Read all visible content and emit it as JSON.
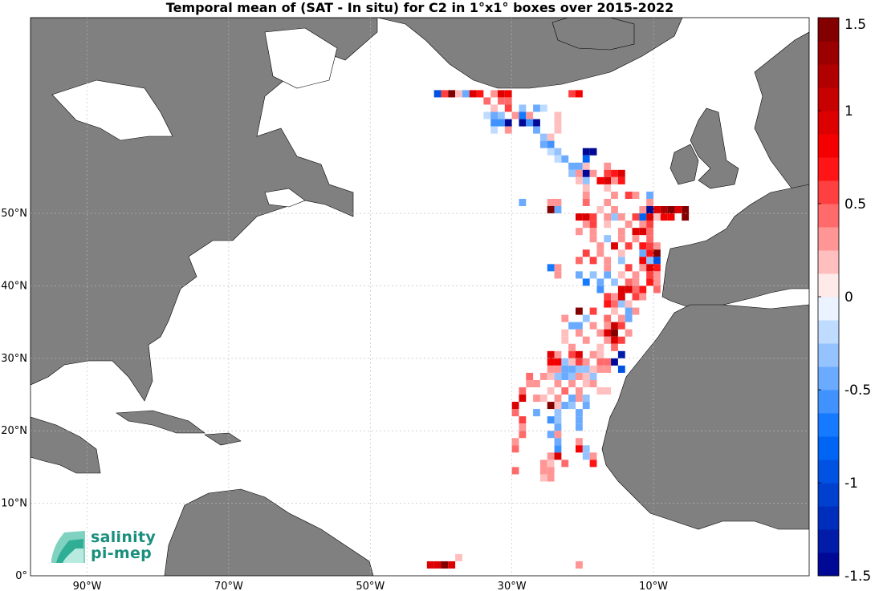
{
  "title": "Temporal mean of (SAT - In situ) for C2 in 1°x1° boxes over 2015-2022",
  "logo": {
    "line1": "salinity",
    "line2": "pi-mep"
  },
  "colors": {
    "land": "#808080",
    "ocean": "#ffffff",
    "grid": "#bbbbbb"
  },
  "chart_data": {
    "type": "heatmap",
    "title": "Temporal mean of (SAT - In situ) for C2 in 1°x1° boxes over 2015-2022",
    "xlabel": "",
    "ylabel": "",
    "xlim": [
      -98,
      12
    ],
    "ylim": [
      0,
      77
    ],
    "x_ticks": [
      {
        "value": -90,
        "label": "90°W"
      },
      {
        "value": -70,
        "label": "70°W"
      },
      {
        "value": -50,
        "label": "50°W"
      },
      {
        "value": -30,
        "label": "30°W"
      },
      {
        "value": -10,
        "label": "10°W"
      }
    ],
    "y_ticks": [
      {
        "value": 0,
        "label": "0°"
      },
      {
        "value": 10,
        "label": "10°N"
      },
      {
        "value": 20,
        "label": "20°N"
      },
      {
        "value": 30,
        "label": "30°N"
      },
      {
        "value": 40,
        "label": "40°N"
      },
      {
        "value": 50,
        "label": "50°N"
      }
    ],
    "colorbar": {
      "range": [
        -1.5,
        1.5
      ],
      "ticks": [
        {
          "value": 1.5,
          "label": "1.5"
        },
        {
          "value": 1,
          "label": "1"
        },
        {
          "value": 0.5,
          "label": "0.5"
        },
        {
          "value": 0,
          "label": "0"
        },
        {
          "value": -0.5,
          "label": "-0.5"
        },
        {
          "value": -1,
          "label": "-1"
        },
        {
          "value": -1.5,
          "label": "-1.5"
        }
      ]
    },
    "cells": [
      [
        -41,
        66,
        -0.9
      ],
      [
        -40,
        66,
        0.6
      ],
      [
        -39,
        66,
        1.4
      ],
      [
        -38,
        66,
        0.2
      ],
      [
        -37,
        66,
        -0.5
      ],
      [
        -36,
        66,
        0.9
      ],
      [
        -35,
        66,
        0.7
      ],
      [
        -33,
        66,
        0.3
      ],
      [
        -32,
        66,
        0.9
      ],
      [
        -31,
        66,
        0.8
      ],
      [
        -22,
        66,
        0.5
      ],
      [
        -21,
        66,
        0.8
      ],
      [
        -34,
        65,
        0.4
      ],
      [
        -32,
        65,
        0.4
      ],
      [
        -31,
        65,
        0.4
      ],
      [
        -33,
        64,
        0.2
      ],
      [
        -31,
        64,
        0.6
      ],
      [
        -29,
        64,
        -0.3
      ],
      [
        -27,
        64,
        -0.4
      ],
      [
        -26,
        64,
        -0.2
      ],
      [
        -34,
        63,
        -0.2
      ],
      [
        -33,
        63,
        -0.4
      ],
      [
        -32,
        63,
        -0.3
      ],
      [
        -30,
        63,
        0.3
      ],
      [
        -29,
        63,
        -0.7
      ],
      [
        -28,
        63,
        0.3
      ],
      [
        -24,
        63,
        0.2
      ],
      [
        -33,
        62,
        -0.6
      ],
      [
        -32,
        62,
        -0.6
      ],
      [
        -31,
        62,
        -1.6
      ],
      [
        -29,
        62,
        -1.5
      ],
      [
        -28,
        62,
        -0.6
      ],
      [
        -27,
        62,
        -1.5
      ],
      [
        -24,
        62,
        0.2
      ],
      [
        -33,
        61,
        -0.2
      ],
      [
        -31,
        61,
        0.3
      ],
      [
        -27,
        61,
        -0.5
      ],
      [
        -24,
        61,
        0.2
      ],
      [
        -26,
        60,
        -0.3
      ],
      [
        -25,
        60,
        0.2
      ],
      [
        -26,
        59,
        -0.4
      ],
      [
        -25,
        59,
        -0.6
      ],
      [
        -25,
        58,
        -0.2
      ],
      [
        -24,
        58,
        -0.3
      ],
      [
        -20,
        58,
        -1.6
      ],
      [
        -19,
        58,
        -1.6
      ],
      [
        -24,
        57,
        -0.2
      ],
      [
        -23,
        57,
        -0.5
      ],
      [
        -20,
        57,
        -0.8
      ],
      [
        -22,
        56,
        -0.4
      ],
      [
        -21,
        56,
        -0.4
      ],
      [
        -20,
        56,
        0.2
      ],
      [
        -17,
        56,
        0.3
      ],
      [
        -22,
        55,
        -0.3
      ],
      [
        -21,
        55,
        0.3
      ],
      [
        -20,
        55,
        -1.5
      ],
      [
        -19,
        55,
        0.3
      ],
      [
        -17,
        55,
        0.5
      ],
      [
        -16,
        55,
        0.7
      ],
      [
        -15,
        55,
        0.9
      ],
      [
        -21,
        54,
        0.2
      ],
      [
        -20,
        54,
        -0.3
      ],
      [
        -18,
        54,
        0.8
      ],
      [
        -17,
        54,
        0.9
      ],
      [
        -16,
        54,
        0.3
      ],
      [
        -15,
        54,
        0.7
      ],
      [
        -20,
        53,
        0.2
      ],
      [
        -17,
        53,
        0.2
      ],
      [
        -20,
        52,
        0.3
      ],
      [
        -16,
        52,
        0.3
      ],
      [
        -14,
        52,
        0.5
      ],
      [
        -13,
        52,
        0.3
      ],
      [
        -11,
        52,
        -0.4
      ],
      [
        -29,
        51,
        -0.5
      ],
      [
        -25,
        51,
        0.3
      ],
      [
        -24,
        51,
        0.3
      ],
      [
        -20,
        51,
        0.4
      ],
      [
        -17,
        51,
        0.3
      ],
      [
        -11,
        51,
        0.3
      ],
      [
        -25,
        50,
        1.4
      ],
      [
        -24,
        50,
        -0.4
      ],
      [
        -18,
        50,
        0.2
      ],
      [
        -16,
        50,
        0.3
      ],
      [
        -12,
        50,
        0.3
      ],
      [
        -11,
        50,
        -1.5
      ],
      [
        -10,
        50,
        0.9
      ],
      [
        -9,
        50,
        1.2
      ],
      [
        -8,
        50,
        1.4
      ],
      [
        -7,
        50,
        0.9
      ],
      [
        -6,
        50,
        1.5
      ],
      [
        -21,
        49,
        0.9
      ],
      [
        -20,
        49,
        0.9
      ],
      [
        -19,
        49,
        0.6
      ],
      [
        -17,
        49,
        0.3
      ],
      [
        -16,
        49,
        -0.3
      ],
      [
        -15,
        49,
        0.3
      ],
      [
        -13,
        49,
        0.6
      ],
      [
        -12,
        49,
        -0.8
      ],
      [
        -11,
        49,
        0.9
      ],
      [
        -10,
        49,
        0.2
      ],
      [
        -9,
        49,
        0.8
      ],
      [
        -8,
        49,
        0.8
      ],
      [
        -6,
        49,
        1.5
      ],
      [
        -20,
        48,
        0.3
      ],
      [
        -19,
        48,
        0.6
      ],
      [
        -17,
        48,
        0.2
      ],
      [
        -14,
        48,
        0.3
      ],
      [
        -12,
        48,
        0.3
      ],
      [
        -11,
        48,
        0.5
      ],
      [
        -21,
        47,
        0.3
      ],
      [
        -19,
        47,
        0.3
      ],
      [
        -15,
        47,
        0.3
      ],
      [
        -13,
        47,
        0.9
      ],
      [
        -12,
        47,
        0.9
      ],
      [
        -11,
        47,
        0.4
      ],
      [
        -19,
        46,
        0.3
      ],
      [
        -17,
        46,
        -0.3
      ],
      [
        -15,
        46,
        0.3
      ],
      [
        -13,
        46,
        0.3
      ],
      [
        -11,
        46,
        0.4
      ],
      [
        -18,
        45,
        0.3
      ],
      [
        -16,
        45,
        0.9
      ],
      [
        -14,
        45,
        0.6
      ],
      [
        -12,
        45,
        0.7
      ],
      [
        -11,
        45,
        0.6
      ],
      [
        -10,
        45,
        0.3
      ],
      [
        -20,
        44,
        0.5
      ],
      [
        -18,
        44,
        0.3
      ],
      [
        -15,
        44,
        0.2
      ],
      [
        -12,
        44,
        -0.4
      ],
      [
        -11,
        44,
        0.7
      ],
      [
        -10,
        44,
        1.5
      ],
      [
        -21,
        43,
        0.4
      ],
      [
        -19,
        43,
        0.5
      ],
      [
        -17,
        43,
        0.3
      ],
      [
        -15,
        43,
        -0.3
      ],
      [
        -12,
        43,
        0.8
      ],
      [
        -11,
        43,
        -0.3
      ],
      [
        -10,
        43,
        -1.0
      ],
      [
        -25,
        42,
        -0.7
      ],
      [
        -24,
        42,
        0.3
      ],
      [
        -17,
        42,
        0.3
      ],
      [
        -14,
        42,
        0.5
      ],
      [
        -12,
        42,
        0.3
      ],
      [
        -11,
        42,
        0.9
      ],
      [
        -10,
        42,
        0.7
      ],
      [
        -24,
        41,
        0.3
      ],
      [
        -21,
        41,
        -0.4
      ],
      [
        -19,
        41,
        -0.3
      ],
      [
        -17,
        41,
        -0.4
      ],
      [
        -15,
        41,
        0.2
      ],
      [
        -13,
        41,
        0.3
      ],
      [
        -11,
        41,
        0.6
      ],
      [
        -10,
        41,
        0.3
      ],
      [
        -20,
        40,
        -0.7
      ],
      [
        -18,
        40,
        -0.4
      ],
      [
        -16,
        40,
        -0.3
      ],
      [
        -14,
        40,
        0.4
      ],
      [
        -13,
        40,
        0.3
      ],
      [
        -11,
        40,
        0.7
      ],
      [
        -10,
        40,
        0.3
      ],
      [
        -18,
        39,
        -0.6
      ],
      [
        -15,
        39,
        0.9
      ],
      [
        -14,
        39,
        0.9
      ],
      [
        -13,
        39,
        0.4
      ],
      [
        -12,
        39,
        0.7
      ],
      [
        -10,
        39,
        0.4
      ],
      [
        -17,
        38,
        0.6
      ],
      [
        -16,
        38,
        0.3
      ],
      [
        -15,
        38,
        0.9
      ],
      [
        -13,
        38,
        0.5
      ],
      [
        -12,
        38,
        0.3
      ],
      [
        -17,
        37,
        0.7
      ],
      [
        -16,
        37,
        0.4
      ],
      [
        -15,
        37,
        -0.3
      ],
      [
        -14,
        37,
        0.2
      ],
      [
        -21,
        36,
        1.4
      ],
      [
        -19,
        36,
        0.5
      ],
      [
        -16,
        36,
        0.2
      ],
      [
        -14,
        36,
        -0.4
      ],
      [
        -13,
        36,
        0.3
      ],
      [
        -23,
        35,
        0.3
      ],
      [
        -20,
        35,
        -0.3
      ],
      [
        -17,
        35,
        0.4
      ],
      [
        -15,
        35,
        0.3
      ],
      [
        -14,
        35,
        -0.4
      ],
      [
        -22,
        34,
        -0.5
      ],
      [
        -21,
        34,
        -0.5
      ],
      [
        -19,
        34,
        0.3
      ],
      [
        -17,
        34,
        0.3
      ],
      [
        -16,
        34,
        1.0
      ],
      [
        -15,
        34,
        0.6
      ],
      [
        -23,
        33,
        0.2
      ],
      [
        -21,
        33,
        0.3
      ],
      [
        -18,
        33,
        0.3
      ],
      [
        -17,
        33,
        0.9
      ],
      [
        -16,
        33,
        1.4
      ],
      [
        -14,
        33,
        0.3
      ],
      [
        -23,
        32,
        0.2
      ],
      [
        -20,
        32,
        0.3
      ],
      [
        -17,
        32,
        0.3
      ],
      [
        -16,
        32,
        0.9
      ],
      [
        -15,
        32,
        0.5
      ],
      [
        -22,
        31,
        0.3
      ],
      [
        -18,
        31,
        0.2
      ],
      [
        -16,
        31,
        0.4
      ],
      [
        -25,
        30,
        0.9
      ],
      [
        -24,
        30,
        0.3
      ],
      [
        -22,
        30,
        0.5
      ],
      [
        -21,
        30,
        0.9
      ],
      [
        -19,
        30,
        0.3
      ],
      [
        -18,
        30,
        0.2
      ],
      [
        -15,
        30,
        -1.3
      ],
      [
        -25,
        29,
        0.8
      ],
      [
        -24,
        29,
        0.8
      ],
      [
        -23,
        29,
        -0.3
      ],
      [
        -22,
        29,
        0.2
      ],
      [
        -21,
        29,
        0.6
      ],
      [
        -20,
        29,
        0.3
      ],
      [
        -18,
        29,
        0.4
      ],
      [
        -17,
        29,
        0.4
      ],
      [
        -16,
        29,
        -1.6
      ],
      [
        -25,
        28,
        0.3
      ],
      [
        -24,
        28,
        0.3
      ],
      [
        -23,
        28,
        -0.4
      ],
      [
        -22,
        28,
        -0.5
      ],
      [
        -21,
        28,
        -0.3
      ],
      [
        -20,
        28,
        -0.3
      ],
      [
        -19,
        28,
        0.2
      ],
      [
        -18,
        28,
        0.3
      ],
      [
        -17,
        28,
        0.3
      ],
      [
        -15,
        28,
        -0.9
      ],
      [
        -28,
        27,
        0.4
      ],
      [
        -26,
        27,
        0.3
      ],
      [
        -25,
        27,
        0.2
      ],
      [
        -24,
        27,
        -0.3
      ],
      [
        -23,
        27,
        -0.5
      ],
      [
        -22,
        27,
        -0.3
      ],
      [
        -21,
        27,
        0.3
      ],
      [
        -20,
        27,
        0.2
      ],
      [
        -19,
        27,
        -0.3
      ],
      [
        -28,
        26,
        0.3
      ],
      [
        -27,
        26,
        0.3
      ],
      [
        -24,
        26,
        0.3
      ],
      [
        -22,
        26,
        0.3
      ],
      [
        -20,
        26,
        0.2
      ],
      [
        -19,
        26,
        0.3
      ],
      [
        -29,
        25,
        0.4
      ],
      [
        -25,
        25,
        0.2
      ],
      [
        -23,
        25,
        0.4
      ],
      [
        -21,
        25,
        0.3
      ],
      [
        -18,
        25,
        0.2
      ],
      [
        -17,
        25,
        0.2
      ],
      [
        -29,
        24,
        0.9
      ],
      [
        -27,
        24,
        0.3
      ],
      [
        -26,
        24,
        0.2
      ],
      [
        -24,
        24,
        0.3
      ],
      [
        -22,
        24,
        -0.5
      ],
      [
        -21,
        24,
        0.3
      ],
      [
        -20,
        24,
        -0.3
      ],
      [
        -30,
        23,
        0.9
      ],
      [
        -25,
        23,
        1.4
      ],
      [
        -24,
        23,
        0.2
      ],
      [
        -23,
        23,
        -0.4
      ],
      [
        -22,
        23,
        -0.3
      ],
      [
        -20,
        23,
        -0.4
      ],
      [
        -30,
        22,
        0.4
      ],
      [
        -27,
        22,
        -0.4
      ],
      [
        -24,
        22,
        -0.3
      ],
      [
        -21,
        22,
        -0.4
      ],
      [
        -29,
        21,
        0.5
      ],
      [
        -25,
        21,
        -0.6
      ],
      [
        -24,
        21,
        -0.3
      ],
      [
        -21,
        21,
        -0.4
      ],
      [
        -29,
        20,
        0.3
      ],
      [
        -24,
        20,
        -0.5
      ],
      [
        -21,
        20,
        -0.5
      ],
      [
        -29,
        19,
        0.4
      ],
      [
        -25,
        19,
        -0.5
      ],
      [
        -24,
        19,
        0.3
      ],
      [
        -30,
        18,
        0.3
      ],
      [
        -24,
        18,
        -0.4
      ],
      [
        -21,
        18,
        0.3
      ],
      [
        -30,
        17,
        0.4
      ],
      [
        -24,
        17,
        -0.6
      ],
      [
        -21,
        17,
        0.8
      ],
      [
        -20,
        17,
        -0.3
      ],
      [
        -25,
        16,
        0.3
      ],
      [
        -24,
        16,
        0.9
      ],
      [
        -20,
        16,
        -0.3
      ],
      [
        -19,
        16,
        0.3
      ],
      [
        -26,
        15,
        0.3
      ],
      [
        -25,
        15,
        0.2
      ],
      [
        -23,
        15,
        0.4
      ],
      [
        -19,
        15,
        0.7
      ],
      [
        -30,
        14,
        0.4
      ],
      [
        -26,
        14,
        0.3
      ],
      [
        -25,
        14,
        0.3
      ],
      [
        -26,
        13,
        0.2
      ],
      [
        -25,
        13,
        0.3
      ],
      [
        -42,
        1,
        0.9
      ],
      [
        -41,
        1,
        0.9
      ],
      [
        -40,
        1,
        1.4
      ],
      [
        -39,
        1,
        0.9
      ],
      [
        -38,
        2,
        0.2
      ],
      [
        -21,
        1,
        0.3
      ]
    ]
  }
}
